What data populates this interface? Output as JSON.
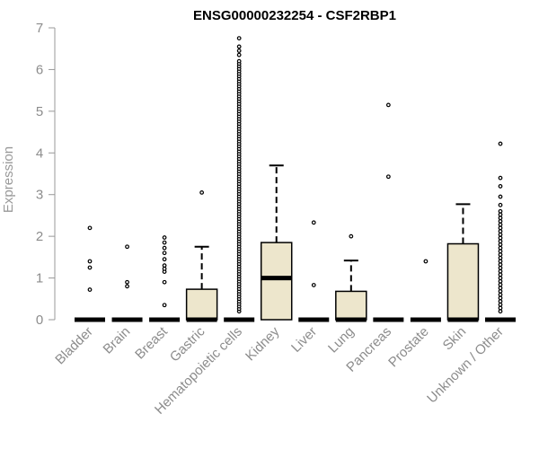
{
  "chart_data": {
    "type": "boxplot",
    "title": "ENSG00000232254 - CSF2RBP1",
    "xlabel": "",
    "ylabel": "Expression",
    "ylim": [
      0,
      7
    ],
    "yticks": [
      0,
      1,
      2,
      3,
      4,
      5,
      6,
      7
    ],
    "grid": false,
    "colors": {
      "box_fill": "#ede6cc",
      "stroke": "#000000",
      "axis": "#999999"
    },
    "categories": [
      "Bladder",
      "Brain",
      "Breast",
      "Gastric",
      "Hematopoietic cells",
      "Kidney",
      "Liver",
      "Lung",
      "Pancreas",
      "Prostate",
      "Skin",
      "Unknown / Other"
    ],
    "boxes": [
      {
        "category": "Bladder",
        "q1": 0,
        "median": 0,
        "q3": 0,
        "whisker_low": 0,
        "whisker_high": 0,
        "outliers": [
          0.72,
          1.25,
          1.4,
          2.2
        ]
      },
      {
        "category": "Brain",
        "q1": 0,
        "median": 0,
        "q3": 0,
        "whisker_low": 0,
        "whisker_high": 0,
        "outliers": [
          0.8,
          0.9,
          1.75
        ]
      },
      {
        "category": "Breast",
        "q1": 0,
        "median": 0,
        "q3": 0,
        "whisker_low": 0,
        "whisker_high": 0,
        "outliers": [
          0.35,
          0.9,
          1.15,
          1.22,
          1.3,
          1.45,
          1.6,
          1.72,
          1.85,
          1.97
        ]
      },
      {
        "category": "Gastric",
        "q1": 0,
        "median": 0,
        "q3": 0.73,
        "whisker_low": 0,
        "whisker_high": 1.75,
        "outliers": [
          3.05
        ]
      },
      {
        "category": "Hematopoietic cells",
        "q1": 0,
        "median": 0,
        "q3": 0,
        "whisker_low": 0,
        "whisker_high": 0,
        "outliers_dense": {
          "from": 0.2,
          "to": 6.2,
          "step": 0.06
        },
        "outliers": [
          6.35,
          6.45,
          6.55,
          6.75
        ]
      },
      {
        "category": "Kidney",
        "q1": 0,
        "median": 1.0,
        "q3": 1.85,
        "whisker_low": 0,
        "whisker_high": 3.7,
        "outliers": []
      },
      {
        "category": "Liver",
        "q1": 0,
        "median": 0,
        "q3": 0,
        "whisker_low": 0,
        "whisker_high": 0,
        "outliers": [
          0.83,
          2.33
        ]
      },
      {
        "category": "Lung",
        "q1": 0,
        "median": 0,
        "q3": 0.68,
        "whisker_low": 0,
        "whisker_high": 1.42,
        "outliers": [
          2.0
        ]
      },
      {
        "category": "Pancreas",
        "q1": 0,
        "median": 0,
        "q3": 0,
        "whisker_low": 0,
        "whisker_high": 0,
        "outliers": [
          3.43,
          5.15
        ]
      },
      {
        "category": "Prostate",
        "q1": 0,
        "median": 0,
        "q3": 0,
        "whisker_low": 0,
        "whisker_high": 0,
        "outliers": [
          1.4
        ]
      },
      {
        "category": "Skin",
        "q1": 0,
        "median": 0,
        "q3": 1.82,
        "whisker_low": 0,
        "whisker_high": 2.77,
        "outliers": []
      },
      {
        "category": "Unknown / Other",
        "q1": 0,
        "median": 0,
        "q3": 0,
        "whisker_low": 0,
        "whisker_high": 0,
        "outliers_dense": {
          "from": 0.2,
          "to": 2.6,
          "step": 0.08
        },
        "outliers": [
          2.75,
          2.95,
          3.2,
          3.4,
          4.22
        ]
      }
    ]
  }
}
